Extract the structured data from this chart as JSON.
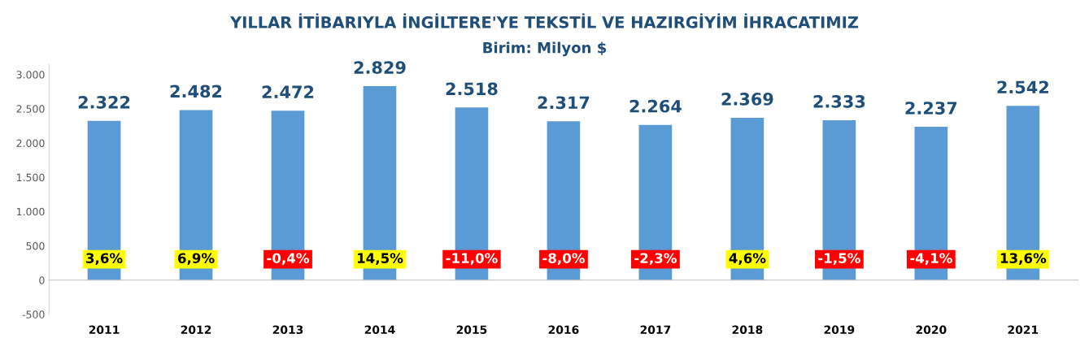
{
  "chart_data": {
    "type": "bar",
    "title": "YILLAR İTİBARIYLA İNGİLTERE'YE TEKSTİL VE HAZIRGİYİM İHRACATIMIZ",
    "subtitle": "Birim: Milyon $",
    "categories": [
      "2011",
      "2012",
      "2013",
      "2014",
      "2015",
      "2016",
      "2017",
      "2018",
      "2019",
      "2020",
      "2021"
    ],
    "values": [
      2322,
      2482,
      2472,
      2829,
      2518,
      2317,
      2264,
      2369,
      2333,
      2237,
      2542
    ],
    "value_labels": [
      "2.322",
      "2.482",
      "2.472",
      "2.829",
      "2.518",
      "2.317",
      "2.264",
      "2.369",
      "2.333",
      "2.237",
      "2.542"
    ],
    "color": "#5b9bd5",
    "ylim": [
      -500,
      3150
    ],
    "yticks": [
      {
        "value": -500,
        "label": "-500"
      },
      {
        "value": 0,
        "label": "0"
      },
      {
        "value": 500,
        "label": "500"
      },
      {
        "value": 1000,
        "label": "1.000"
      },
      {
        "value": 1500,
        "label": "1.500"
      },
      {
        "value": 2000,
        "label": "2.000"
      },
      {
        "value": 2500,
        "label": "2.500"
      },
      {
        "value": 3000,
        "label": "3.000"
      }
    ],
    "legend": false,
    "annotations": [
      "3,6%",
      "6,9%",
      "-0,4%",
      "14,5%",
      "-11,0%",
      "-8,0%",
      "-2,3%",
      "4,6%",
      "-1,5%",
      "-4,1%",
      "13,6%"
    ]
  }
}
